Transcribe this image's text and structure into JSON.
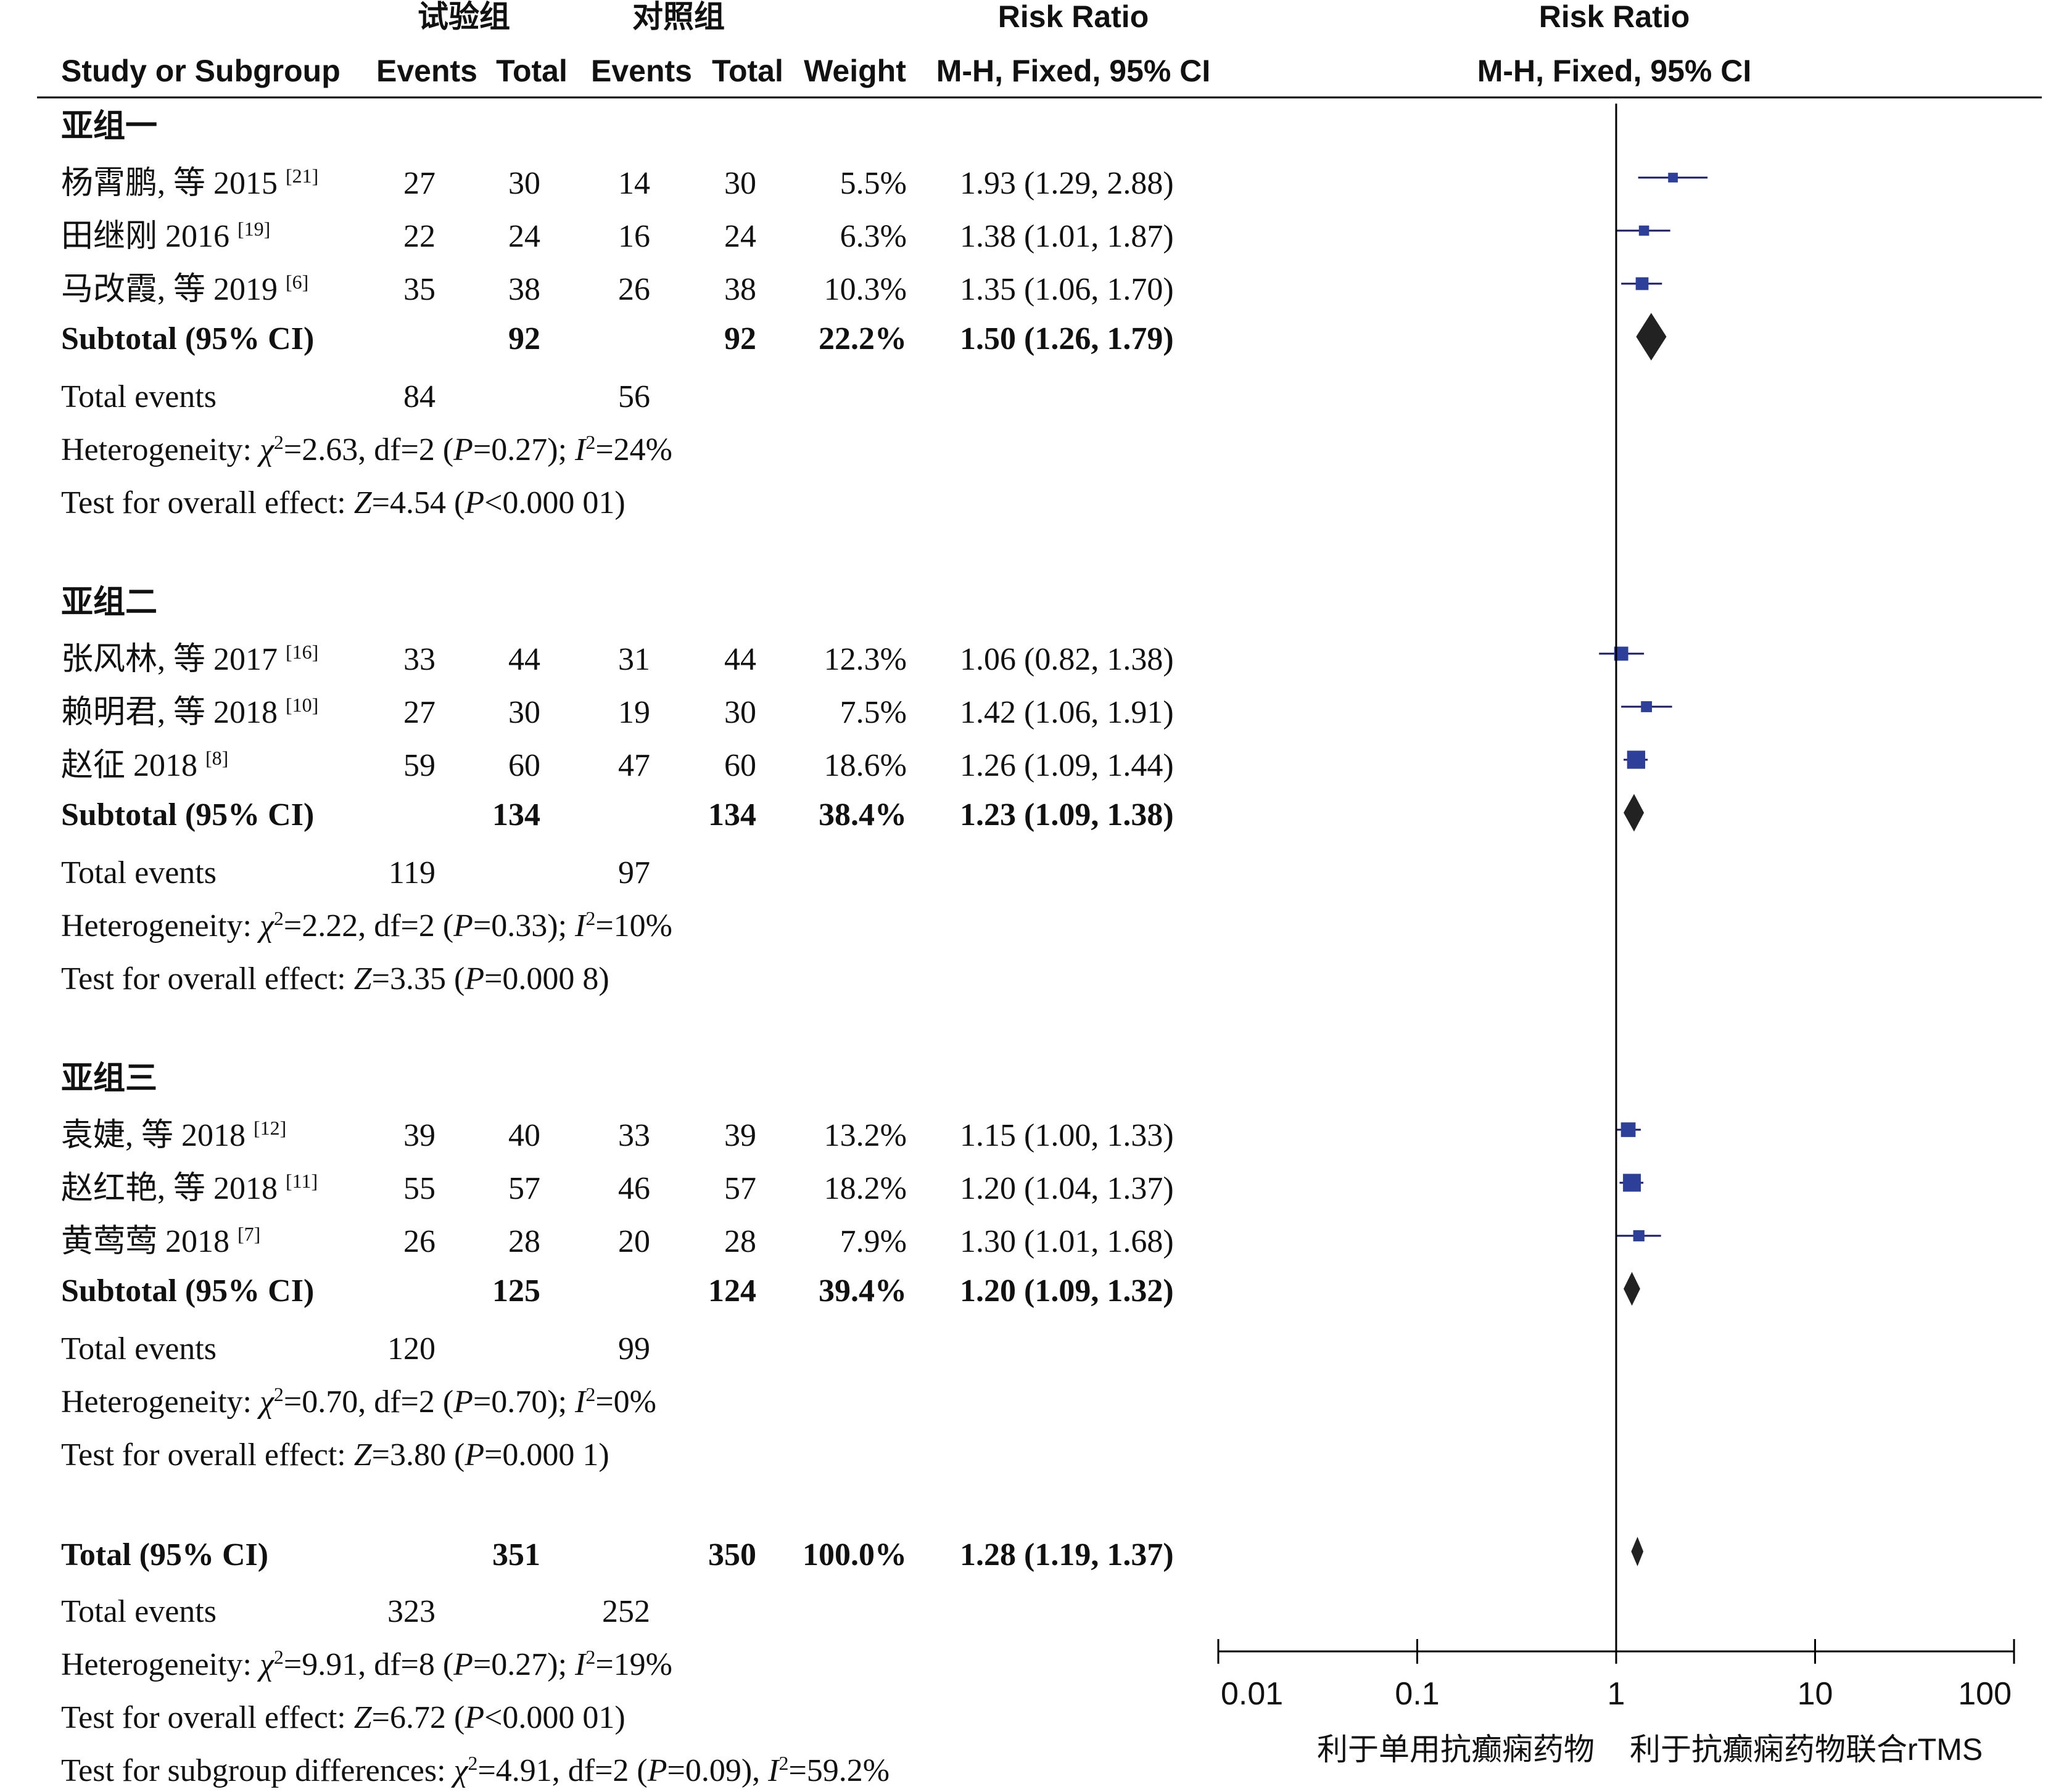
{
  "header": {
    "exp_group": "试验组",
    "ctl_group": "对照组",
    "rr_title": "Risk Ratio",
    "rr_method": "M-H, Fixed, 95% CI",
    "plot_title": "Risk Ratio",
    "plot_method": "M-H, Fixed, 95% CI",
    "col_study": "Study or Subgroup",
    "col_events1": "Events",
    "col_total1": "Total",
    "col_events2": "Events",
    "col_total2": "Total",
    "col_weight": "Weight"
  },
  "chart_data": {
    "type": "forest",
    "x_scale": "log",
    "xlim": [
      0.01,
      100
    ],
    "null_line": 1,
    "x_ticks": [
      "0.01",
      "0.1",
      "1",
      "10",
      "100"
    ],
    "x_tick_values": [
      0.01,
      0.1,
      1,
      10,
      100
    ],
    "favours_left": "利于单用抗癫痫药物",
    "favours_right": "利于抗癫痫药物联合rTMS",
    "colors": {
      "study_marker": "#2e3f9a",
      "summary_diamond": "#222222",
      "axis": "#000000"
    },
    "subgroups": [
      {
        "name": "亚组一",
        "studies": [
          {
            "name": "杨霄鹏, 等 2015",
            "ref": "[21]",
            "e1": "27",
            "t1": "30",
            "e2": "14",
            "t2": "30",
            "weight": "5.5%",
            "ci_text": "1.93 (1.29, 2.88)",
            "rr": 1.93,
            "lo": 1.29,
            "hi": 2.88,
            "w": 5.5
          },
          {
            "name": "田继刚 2016",
            "ref": "[19]",
            "e1": "22",
            "t1": "24",
            "e2": "16",
            "t2": "24",
            "weight": "6.3%",
            "ci_text": "1.38 (1.01, 1.87)",
            "rr": 1.38,
            "lo": 1.01,
            "hi": 1.87,
            "w": 6.3
          },
          {
            "name": "马改霞, 等 2019",
            "ref": "[6]",
            "e1": "35",
            "t1": "38",
            "e2": "26",
            "t2": "38",
            "weight": "10.3%",
            "ci_text": "1.35 (1.06, 1.70)",
            "rr": 1.35,
            "lo": 1.06,
            "hi": 1.7,
            "w": 10.3
          }
        ],
        "subtotal": {
          "label": "Subtotal (95% CI)",
          "t1": "92",
          "t2": "92",
          "weight": "22.2%",
          "ci_text": "1.50 (1.26, 1.79)",
          "rr": 1.5,
          "lo": 1.26,
          "hi": 1.79
        },
        "total_events": {
          "label": "Total events",
          "e1": "84",
          "e2": "56"
        },
        "heterogeneity": {
          "label": "Heterogeneity: ",
          "chi": "2.63",
          "df": "2",
          "p": "0.27",
          "i2": "24%"
        },
        "overall": {
          "label": "Test for overall effect: ",
          "z": "4.54",
          "p": "<0.000 01"
        }
      },
      {
        "name": "亚组二",
        "studies": [
          {
            "name": "张风林, 等 2017",
            "ref": "[16]",
            "e1": "33",
            "t1": "44",
            "e2": "31",
            "t2": "44",
            "weight": "12.3%",
            "ci_text": "1.06 (0.82, 1.38)",
            "rr": 1.06,
            "lo": 0.82,
            "hi": 1.38,
            "w": 12.3
          },
          {
            "name": "赖明君, 等 2018",
            "ref": "[10]",
            "e1": "27",
            "t1": "30",
            "e2": "19",
            "t2": "30",
            "weight": "7.5%",
            "ci_text": "1.42 (1.06, 1.91)",
            "rr": 1.42,
            "lo": 1.06,
            "hi": 1.91,
            "w": 7.5
          },
          {
            "name": "赵征 2018",
            "ref": "[8]",
            "e1": "59",
            "t1": "60",
            "e2": "47",
            "t2": "60",
            "weight": "18.6%",
            "ci_text": "1.26 (1.09, 1.44)",
            "rr": 1.26,
            "lo": 1.09,
            "hi": 1.44,
            "w": 18.6
          }
        ],
        "subtotal": {
          "label": "Subtotal (95% CI)",
          "t1": "134",
          "t2": "134",
          "weight": "38.4%",
          "ci_text": "1.23 (1.09, 1.38)",
          "rr": 1.23,
          "lo": 1.09,
          "hi": 1.38
        },
        "total_events": {
          "label": "Total events",
          "e1": "119",
          "e2": "97"
        },
        "heterogeneity": {
          "label": "Heterogeneity: ",
          "chi": "2.22",
          "df": "2",
          "p": "0.33",
          "i2": "10%"
        },
        "overall": {
          "label": "Test for overall effect: ",
          "z": "3.35",
          "p": "=0.000 8"
        }
      },
      {
        "name": "亚组三",
        "studies": [
          {
            "name": "袁婕, 等 2018",
            "ref": "[12]",
            "e1": "39",
            "t1": "40",
            "e2": "33",
            "t2": "39",
            "weight": "13.2%",
            "ci_text": "1.15 (1.00, 1.33)",
            "rr": 1.15,
            "lo": 1.0,
            "hi": 1.33,
            "w": 13.2
          },
          {
            "name": "赵红艳, 等 2018",
            "ref": "[11]",
            "e1": "55",
            "t1": "57",
            "e2": "46",
            "t2": "57",
            "weight": "18.2%",
            "ci_text": "1.20 (1.04, 1.37)",
            "rr": 1.2,
            "lo": 1.04,
            "hi": 1.37,
            "w": 18.2
          },
          {
            "name": "黄莺莺 2018",
            "ref": "[7]",
            "e1": "26",
            "t1": "28",
            "e2": "20",
            "t2": "28",
            "weight": "7.9%",
            "ci_text": "1.30 (1.01, 1.68)",
            "rr": 1.3,
            "lo": 1.01,
            "hi": 1.68,
            "w": 7.9
          }
        ],
        "subtotal": {
          "label": "Subtotal (95% CI)",
          "t1": "125",
          "t2": "124",
          "weight": "39.4%",
          "ci_text": "1.20 (1.09, 1.32)",
          "rr": 1.2,
          "lo": 1.09,
          "hi": 1.32
        },
        "total_events": {
          "label": "Total events",
          "e1": "120",
          "e2": "99"
        },
        "heterogeneity": {
          "label": "Heterogeneity: ",
          "chi": "0.70",
          "df": "2",
          "p": "0.70",
          "i2": "0%"
        },
        "overall": {
          "label": "Test for overall effect: ",
          "z": "3.80",
          "p": "=0.000 1"
        }
      }
    ],
    "total": {
      "label": "Total (95% CI)",
      "t1": "351",
      "t2": "350",
      "weight": "100.0%",
      "ci_text": "1.28 (1.19, 1.37)",
      "rr": 1.28,
      "lo": 1.19,
      "hi": 1.37,
      "total_events": {
        "label": "Total events",
        "e1": "323",
        "e2": "252"
      },
      "heterogeneity": {
        "label": "Heterogeneity: ",
        "chi": "9.91",
        "df": "8",
        "p": "0.27",
        "i2": "19%"
      },
      "overall": {
        "label": "Test for overall effect: ",
        "z": "6.72",
        "p": "<0.000 01"
      },
      "subgroup_diff": {
        "label": "Test for subgroup differences: ",
        "chi": "4.91",
        "df": "2",
        "p": "0.09",
        "i2": "59.2%"
      }
    }
  }
}
